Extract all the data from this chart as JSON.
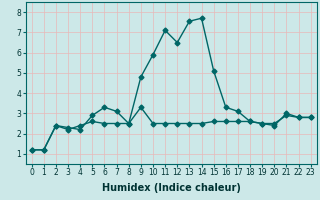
{
  "xlabel": "Humidex (Indice chaleur)",
  "ylabel": "",
  "bg_color": "#cce8e8",
  "grid_color": "#e8b8b8",
  "line_color": "#006666",
  "xlim": [
    -0.5,
    23.5
  ],
  "ylim": [
    0.5,
    8.5
  ],
  "xticks": [
    0,
    1,
    2,
    3,
    4,
    5,
    6,
    7,
    8,
    9,
    10,
    11,
    12,
    13,
    14,
    15,
    16,
    17,
    18,
    19,
    20,
    21,
    22,
    23
  ],
  "yticks": [
    1,
    2,
    3,
    4,
    5,
    6,
    7,
    8
  ],
  "series": [
    [
      1.2,
      1.2,
      2.4,
      2.3,
      2.2,
      2.9,
      3.3,
      3.1,
      2.5,
      3.3,
      2.5,
      2.5,
      2.5,
      2.5,
      2.5,
      2.6,
      2.6,
      2.6,
      2.6,
      2.5,
      2.5,
      2.9,
      2.8,
      2.8
    ],
    [
      1.2,
      1.2,
      2.4,
      2.2,
      2.4,
      2.6,
      2.5,
      2.5,
      2.5,
      4.8,
      5.9,
      7.1,
      6.5,
      7.55,
      7.7,
      5.1,
      3.3,
      3.1,
      2.6,
      2.5,
      2.4,
      3.0,
      2.8,
      2.8
    ]
  ],
  "marker": "D",
  "marker_size": 2.5,
  "line_width": 1.0,
  "tick_fontsize": 5.5,
  "xlabel_fontsize": 7.0
}
